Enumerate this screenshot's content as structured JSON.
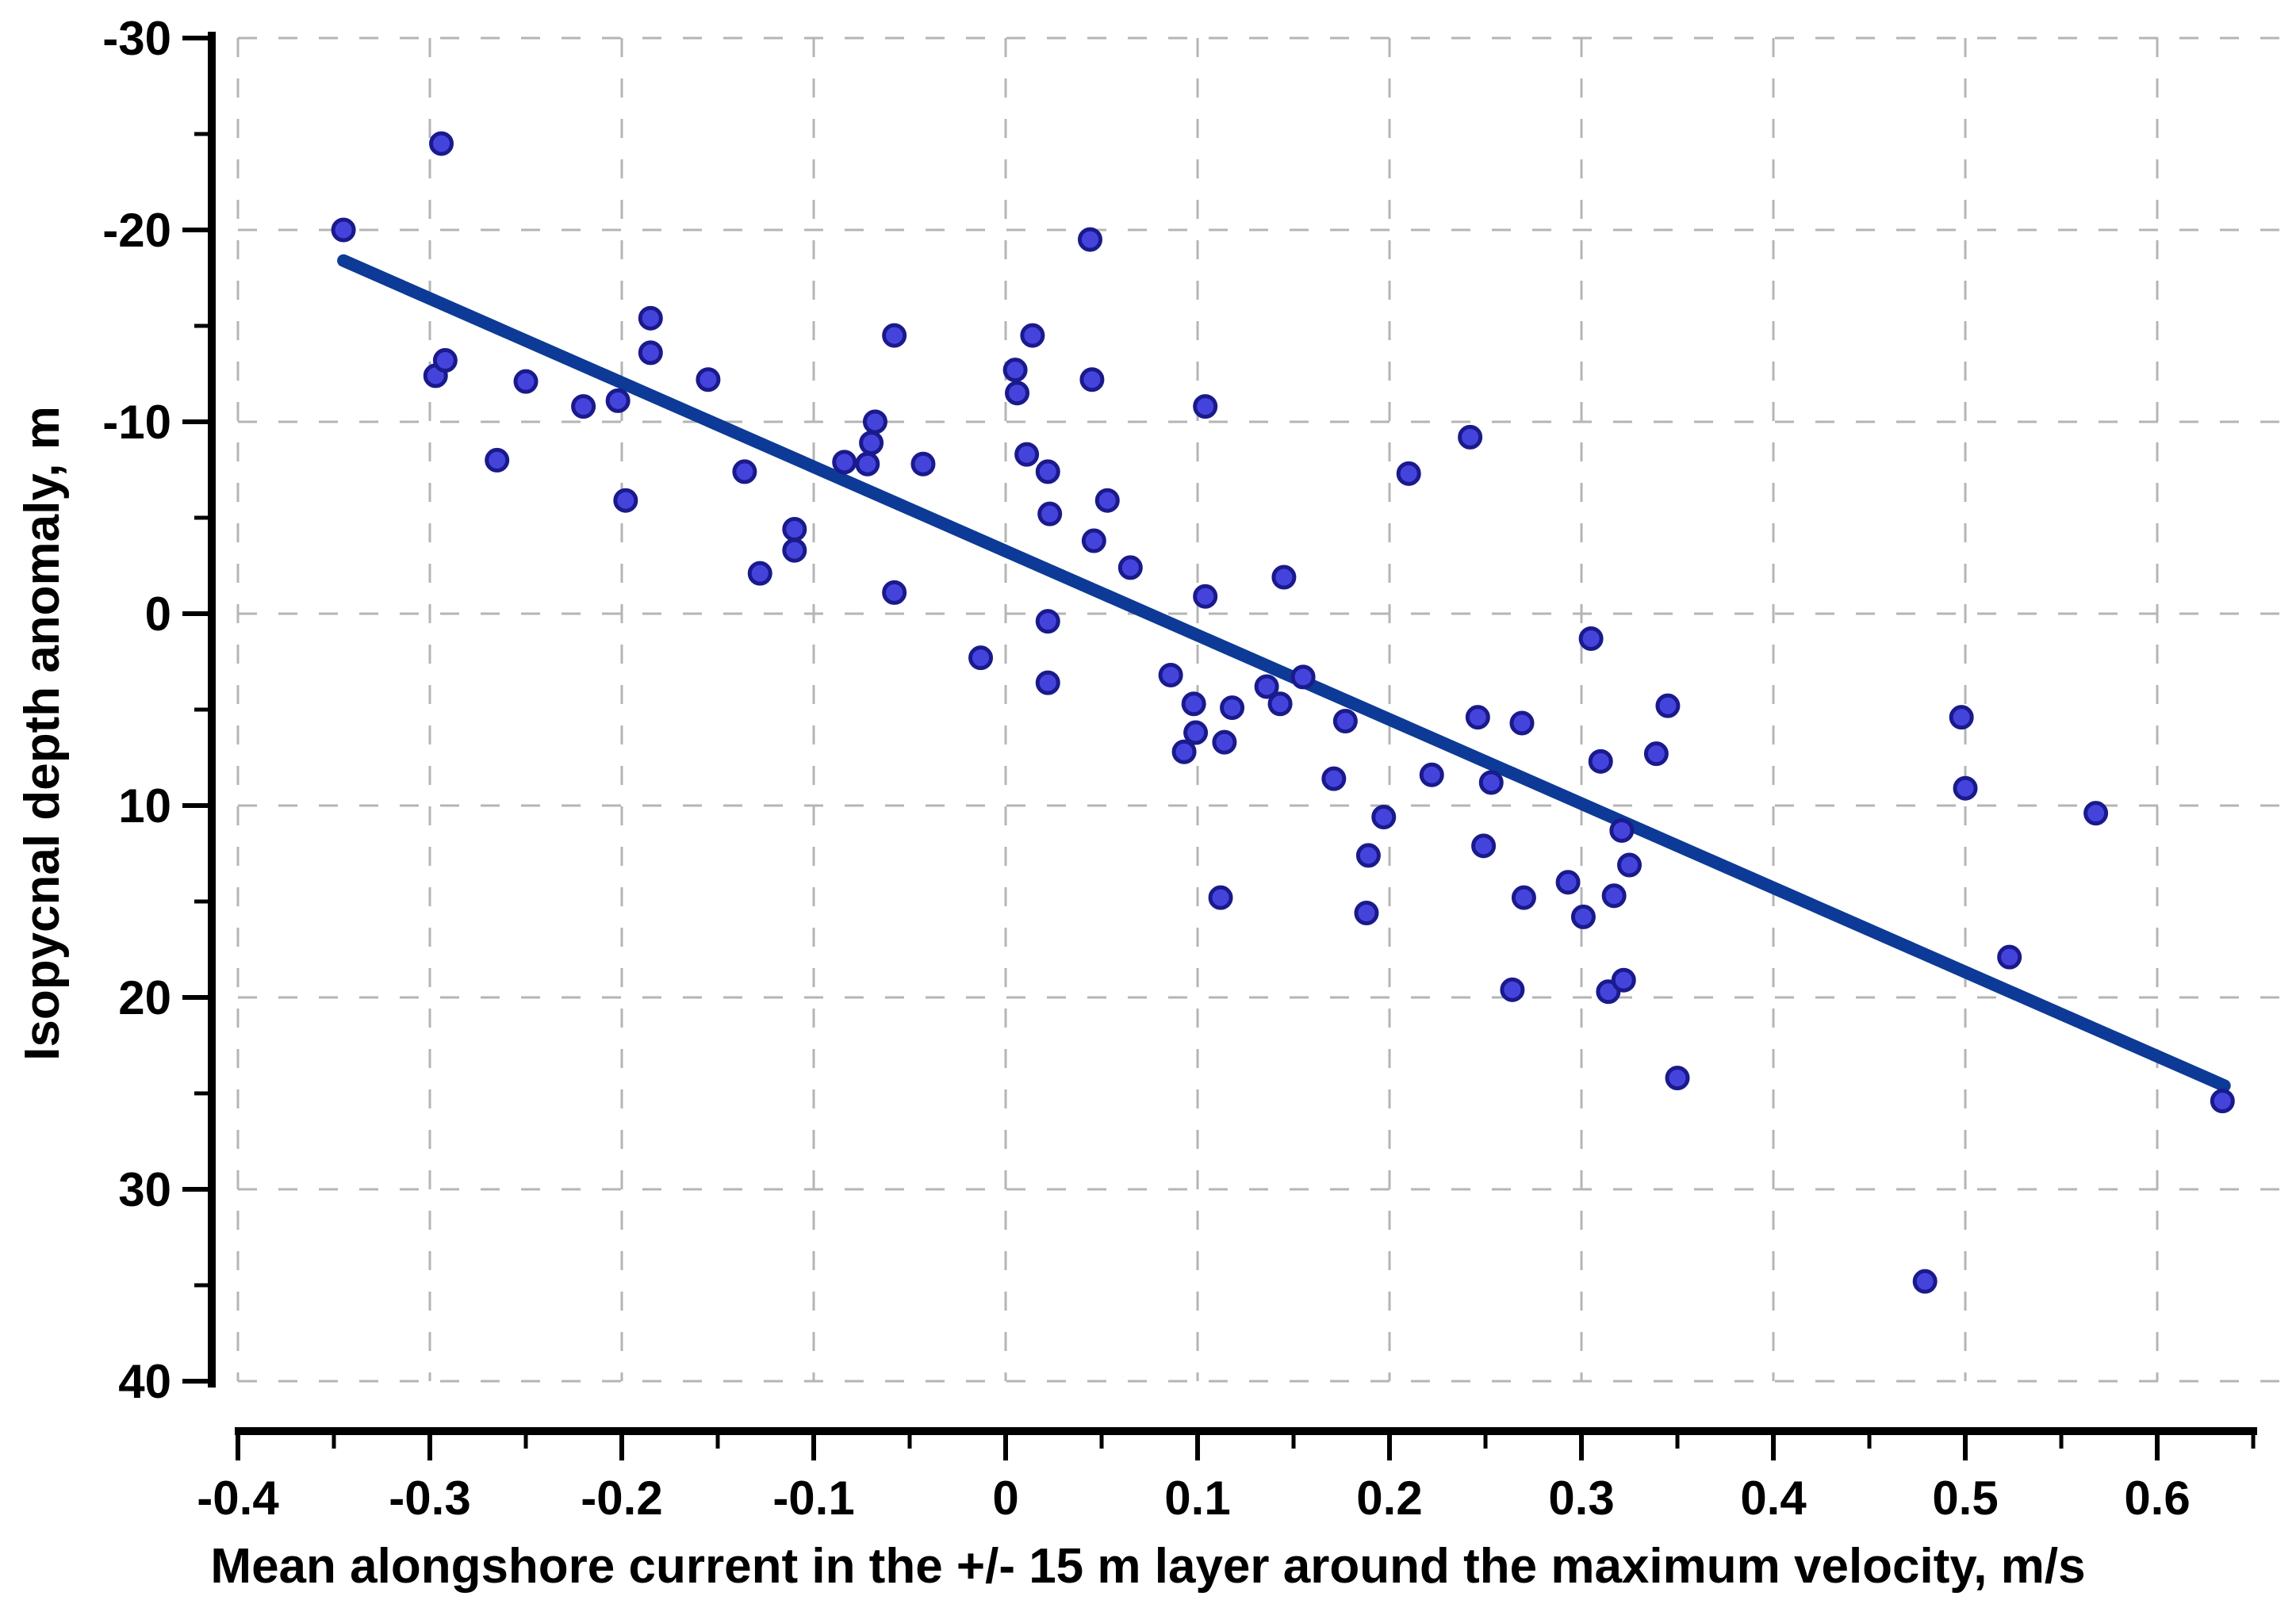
{
  "chart_data": {
    "type": "scatter",
    "title": "",
    "xlabel": "Mean alongshore current in the +/- 15 m layer around the maximum velocity, m/s",
    "ylabel": "Isopycnal depth anomaly, m",
    "xlim": [
      -0.4,
      0.6661
    ],
    "ylim": [
      -30,
      40
    ],
    "y_axis_inverted": true,
    "grid": true,
    "legend_position": "none",
    "x_ticks": [
      {
        "v": -0.4,
        "label": "-0.4"
      },
      {
        "v": -0.3,
        "label": "-0.3"
      },
      {
        "v": -0.2,
        "label": "-0.2"
      },
      {
        "v": -0.1,
        "label": "-0.1"
      },
      {
        "v": 0,
        "label": "0"
      },
      {
        "v": 0.1,
        "label": "0.1"
      },
      {
        "v": 0.2,
        "label": "0.2"
      },
      {
        "v": 0.3,
        "label": "0.3"
      },
      {
        "v": 0.4,
        "label": "0.4"
      },
      {
        "v": 0.5,
        "label": "0.5"
      },
      {
        "v": 0.6,
        "label": "0.6"
      }
    ],
    "x_minor_ticks": [
      -0.35,
      -0.25,
      -0.15,
      -0.05,
      0.05,
      0.15,
      0.25,
      0.35,
      0.45,
      0.55,
      0.65
    ],
    "y_ticks": [
      {
        "v": -30,
        "label": "-30"
      },
      {
        "v": -20,
        "label": "-20"
      },
      {
        "v": -10,
        "label": "-10"
      },
      {
        "v": 0,
        "label": "0"
      },
      {
        "v": 10,
        "label": "10"
      },
      {
        "v": 20,
        "label": "20"
      },
      {
        "v": 30,
        "label": "30"
      },
      {
        "v": 40,
        "label": "40"
      }
    ],
    "y_minor_ticks": [
      -25,
      -15,
      -5,
      5,
      15,
      25,
      35
    ],
    "points": [
      [
        -0.345,
        -20.0
      ],
      [
        -0.297,
        -12.4
      ],
      [
        -0.294,
        -24.5
      ],
      [
        -0.292,
        -13.2
      ],
      [
        -0.265,
        -8.0
      ],
      [
        -0.25,
        -12.1
      ],
      [
        -0.22,
        -10.8
      ],
      [
        -0.202,
        -11.1
      ],
      [
        -0.198,
        -5.9
      ],
      [
        -0.185,
        -15.4
      ],
      [
        -0.185,
        -13.6
      ],
      [
        -0.155,
        -12.2
      ],
      [
        -0.136,
        -7.4
      ],
      [
        -0.128,
        -2.1
      ],
      [
        -0.11,
        -4.4
      ],
      [
        -0.11,
        -3.3
      ],
      [
        -0.084,
        -7.9
      ],
      [
        -0.072,
        -7.8
      ],
      [
        -0.07,
        -8.9
      ],
      [
        -0.068,
        -10.0
      ],
      [
        -0.058,
        -14.5
      ],
      [
        -0.058,
        -1.1
      ],
      [
        -0.043,
        -7.8
      ],
      [
        -0.013,
        2.3
      ],
      [
        0.005,
        -12.7
      ],
      [
        0.006,
        -11.5
      ],
      [
        0.011,
        -8.3
      ],
      [
        0.014,
        -14.5
      ],
      [
        0.022,
        -7.4
      ],
      [
        0.022,
        0.4
      ],
      [
        0.022,
        3.6
      ],
      [
        0.023,
        -5.2
      ],
      [
        0.044,
        -19.5
      ],
      [
        0.045,
        -12.2
      ],
      [
        0.046,
        -3.8
      ],
      [
        0.053,
        -5.9
      ],
      [
        0.065,
        -2.4
      ],
      [
        0.086,
        3.2
      ],
      [
        0.093,
        7.2
      ],
      [
        0.098,
        4.7
      ],
      [
        0.099,
        6.2
      ],
      [
        0.104,
        -10.8
      ],
      [
        0.104,
        -0.9
      ],
      [
        0.112,
        14.8
      ],
      [
        0.114,
        6.7
      ],
      [
        0.118,
        4.9
      ],
      [
        0.136,
        3.8
      ],
      [
        0.143,
        4.7
      ],
      [
        0.145,
        -1.9
      ],
      [
        0.155,
        3.3
      ],
      [
        0.171,
        8.6
      ],
      [
        0.177,
        5.6
      ],
      [
        0.188,
        15.6
      ],
      [
        0.189,
        12.6
      ],
      [
        0.197,
        10.6
      ],
      [
        0.21,
        -7.3
      ],
      [
        0.222,
        8.4
      ],
      [
        0.242,
        -9.2
      ],
      [
        0.246,
        5.4
      ],
      [
        0.249,
        12.1
      ],
      [
        0.253,
        8.8
      ],
      [
        0.264,
        19.6
      ],
      [
        0.269,
        5.7
      ],
      [
        0.27,
        14.8
      ],
      [
        0.293,
        14.0
      ],
      [
        0.301,
        15.8
      ],
      [
        0.305,
        1.3
      ],
      [
        0.31,
        7.7
      ],
      [
        0.314,
        19.7
      ],
      [
        0.317,
        14.7
      ],
      [
        0.321,
        11.3
      ],
      [
        0.322,
        19.1
      ],
      [
        0.325,
        13.1
      ],
      [
        0.339,
        7.3
      ],
      [
        0.345,
        4.8
      ],
      [
        0.35,
        24.2
      ],
      [
        0.479,
        34.8
      ],
      [
        0.498,
        5.4
      ],
      [
        0.5,
        9.1
      ],
      [
        0.523,
        17.9
      ],
      [
        0.568,
        10.4
      ],
      [
        0.634,
        25.4
      ]
    ],
    "trend_line": {
      "x1": -0.345,
      "y1": -18.4,
      "x2": 0.635,
      "y2": 24.6
    },
    "colors": {
      "point_fill": "#4444dd",
      "point_edge": "#1a1a8c",
      "trend_line": "#0c3a96",
      "grid": "#b5b5b5",
      "axis": "#000000",
      "background": "#ffffff"
    }
  }
}
